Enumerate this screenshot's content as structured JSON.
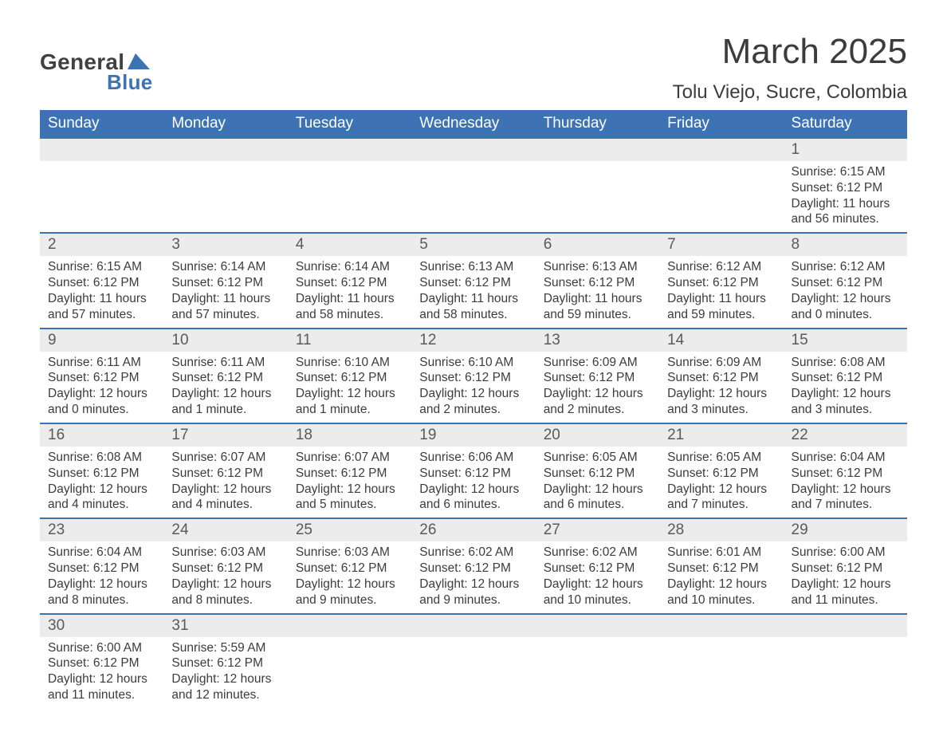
{
  "brand": {
    "general": "General",
    "blue": "Blue"
  },
  "title": "March 2025",
  "location": "Tolu Viejo, Sucre, Colombia",
  "colors": {
    "header_bg": "#3d72b4",
    "header_text": "#ffffff",
    "daynum_bg": "#ececec",
    "row_divider": "#3d72b4",
    "text": "#3c3c3c",
    "logo_blue": "#3d72b4",
    "logo_gray": "#414141",
    "page_bg": "#ffffff"
  },
  "typography": {
    "title_fontsize": 44,
    "location_fontsize": 24,
    "header_fontsize": 19,
    "daynum_fontsize": 19,
    "body_fontsize": 15.5
  },
  "columns": [
    "Sunday",
    "Monday",
    "Tuesday",
    "Wednesday",
    "Thursday",
    "Friday",
    "Saturday"
  ],
  "weeks": [
    [
      null,
      null,
      null,
      null,
      null,
      null,
      {
        "n": "1",
        "sr": "Sunrise: 6:15 AM",
        "ss": "Sunset: 6:12 PM",
        "dl": "Daylight: 11 hours and 56 minutes."
      }
    ],
    [
      {
        "n": "2",
        "sr": "Sunrise: 6:15 AM",
        "ss": "Sunset: 6:12 PM",
        "dl": "Daylight: 11 hours and 57 minutes."
      },
      {
        "n": "3",
        "sr": "Sunrise: 6:14 AM",
        "ss": "Sunset: 6:12 PM",
        "dl": "Daylight: 11 hours and 57 minutes."
      },
      {
        "n": "4",
        "sr": "Sunrise: 6:14 AM",
        "ss": "Sunset: 6:12 PM",
        "dl": "Daylight: 11 hours and 58 minutes."
      },
      {
        "n": "5",
        "sr": "Sunrise: 6:13 AM",
        "ss": "Sunset: 6:12 PM",
        "dl": "Daylight: 11 hours and 58 minutes."
      },
      {
        "n": "6",
        "sr": "Sunrise: 6:13 AM",
        "ss": "Sunset: 6:12 PM",
        "dl": "Daylight: 11 hours and 59 minutes."
      },
      {
        "n": "7",
        "sr": "Sunrise: 6:12 AM",
        "ss": "Sunset: 6:12 PM",
        "dl": "Daylight: 11 hours and 59 minutes."
      },
      {
        "n": "8",
        "sr": "Sunrise: 6:12 AM",
        "ss": "Sunset: 6:12 PM",
        "dl": "Daylight: 12 hours and 0 minutes."
      }
    ],
    [
      {
        "n": "9",
        "sr": "Sunrise: 6:11 AM",
        "ss": "Sunset: 6:12 PM",
        "dl": "Daylight: 12 hours and 0 minutes."
      },
      {
        "n": "10",
        "sr": "Sunrise: 6:11 AM",
        "ss": "Sunset: 6:12 PM",
        "dl": "Daylight: 12 hours and 1 minute."
      },
      {
        "n": "11",
        "sr": "Sunrise: 6:10 AM",
        "ss": "Sunset: 6:12 PM",
        "dl": "Daylight: 12 hours and 1 minute."
      },
      {
        "n": "12",
        "sr": "Sunrise: 6:10 AM",
        "ss": "Sunset: 6:12 PM",
        "dl": "Daylight: 12 hours and 2 minutes."
      },
      {
        "n": "13",
        "sr": "Sunrise: 6:09 AM",
        "ss": "Sunset: 6:12 PM",
        "dl": "Daylight: 12 hours and 2 minutes."
      },
      {
        "n": "14",
        "sr": "Sunrise: 6:09 AM",
        "ss": "Sunset: 6:12 PM",
        "dl": "Daylight: 12 hours and 3 minutes."
      },
      {
        "n": "15",
        "sr": "Sunrise: 6:08 AM",
        "ss": "Sunset: 6:12 PM",
        "dl": "Daylight: 12 hours and 3 minutes."
      }
    ],
    [
      {
        "n": "16",
        "sr": "Sunrise: 6:08 AM",
        "ss": "Sunset: 6:12 PM",
        "dl": "Daylight: 12 hours and 4 minutes."
      },
      {
        "n": "17",
        "sr": "Sunrise: 6:07 AM",
        "ss": "Sunset: 6:12 PM",
        "dl": "Daylight: 12 hours and 4 minutes."
      },
      {
        "n": "18",
        "sr": "Sunrise: 6:07 AM",
        "ss": "Sunset: 6:12 PM",
        "dl": "Daylight: 12 hours and 5 minutes."
      },
      {
        "n": "19",
        "sr": "Sunrise: 6:06 AM",
        "ss": "Sunset: 6:12 PM",
        "dl": "Daylight: 12 hours and 6 minutes."
      },
      {
        "n": "20",
        "sr": "Sunrise: 6:05 AM",
        "ss": "Sunset: 6:12 PM",
        "dl": "Daylight: 12 hours and 6 minutes."
      },
      {
        "n": "21",
        "sr": "Sunrise: 6:05 AM",
        "ss": "Sunset: 6:12 PM",
        "dl": "Daylight: 12 hours and 7 minutes."
      },
      {
        "n": "22",
        "sr": "Sunrise: 6:04 AM",
        "ss": "Sunset: 6:12 PM",
        "dl": "Daylight: 12 hours and 7 minutes."
      }
    ],
    [
      {
        "n": "23",
        "sr": "Sunrise: 6:04 AM",
        "ss": "Sunset: 6:12 PM",
        "dl": "Daylight: 12 hours and 8 minutes."
      },
      {
        "n": "24",
        "sr": "Sunrise: 6:03 AM",
        "ss": "Sunset: 6:12 PM",
        "dl": "Daylight: 12 hours and 8 minutes."
      },
      {
        "n": "25",
        "sr": "Sunrise: 6:03 AM",
        "ss": "Sunset: 6:12 PM",
        "dl": "Daylight: 12 hours and 9 minutes."
      },
      {
        "n": "26",
        "sr": "Sunrise: 6:02 AM",
        "ss": "Sunset: 6:12 PM",
        "dl": "Daylight: 12 hours and 9 minutes."
      },
      {
        "n": "27",
        "sr": "Sunrise: 6:02 AM",
        "ss": "Sunset: 6:12 PM",
        "dl": "Daylight: 12 hours and 10 minutes."
      },
      {
        "n": "28",
        "sr": "Sunrise: 6:01 AM",
        "ss": "Sunset: 6:12 PM",
        "dl": "Daylight: 12 hours and 10 minutes."
      },
      {
        "n": "29",
        "sr": "Sunrise: 6:00 AM",
        "ss": "Sunset: 6:12 PM",
        "dl": "Daylight: 12 hours and 11 minutes."
      }
    ],
    [
      {
        "n": "30",
        "sr": "Sunrise: 6:00 AM",
        "ss": "Sunset: 6:12 PM",
        "dl": "Daylight: 12 hours and 11 minutes."
      },
      {
        "n": "31",
        "sr": "Sunrise: 5:59 AM",
        "ss": "Sunset: 6:12 PM",
        "dl": "Daylight: 12 hours and 12 minutes."
      },
      null,
      null,
      null,
      null,
      null
    ]
  ]
}
